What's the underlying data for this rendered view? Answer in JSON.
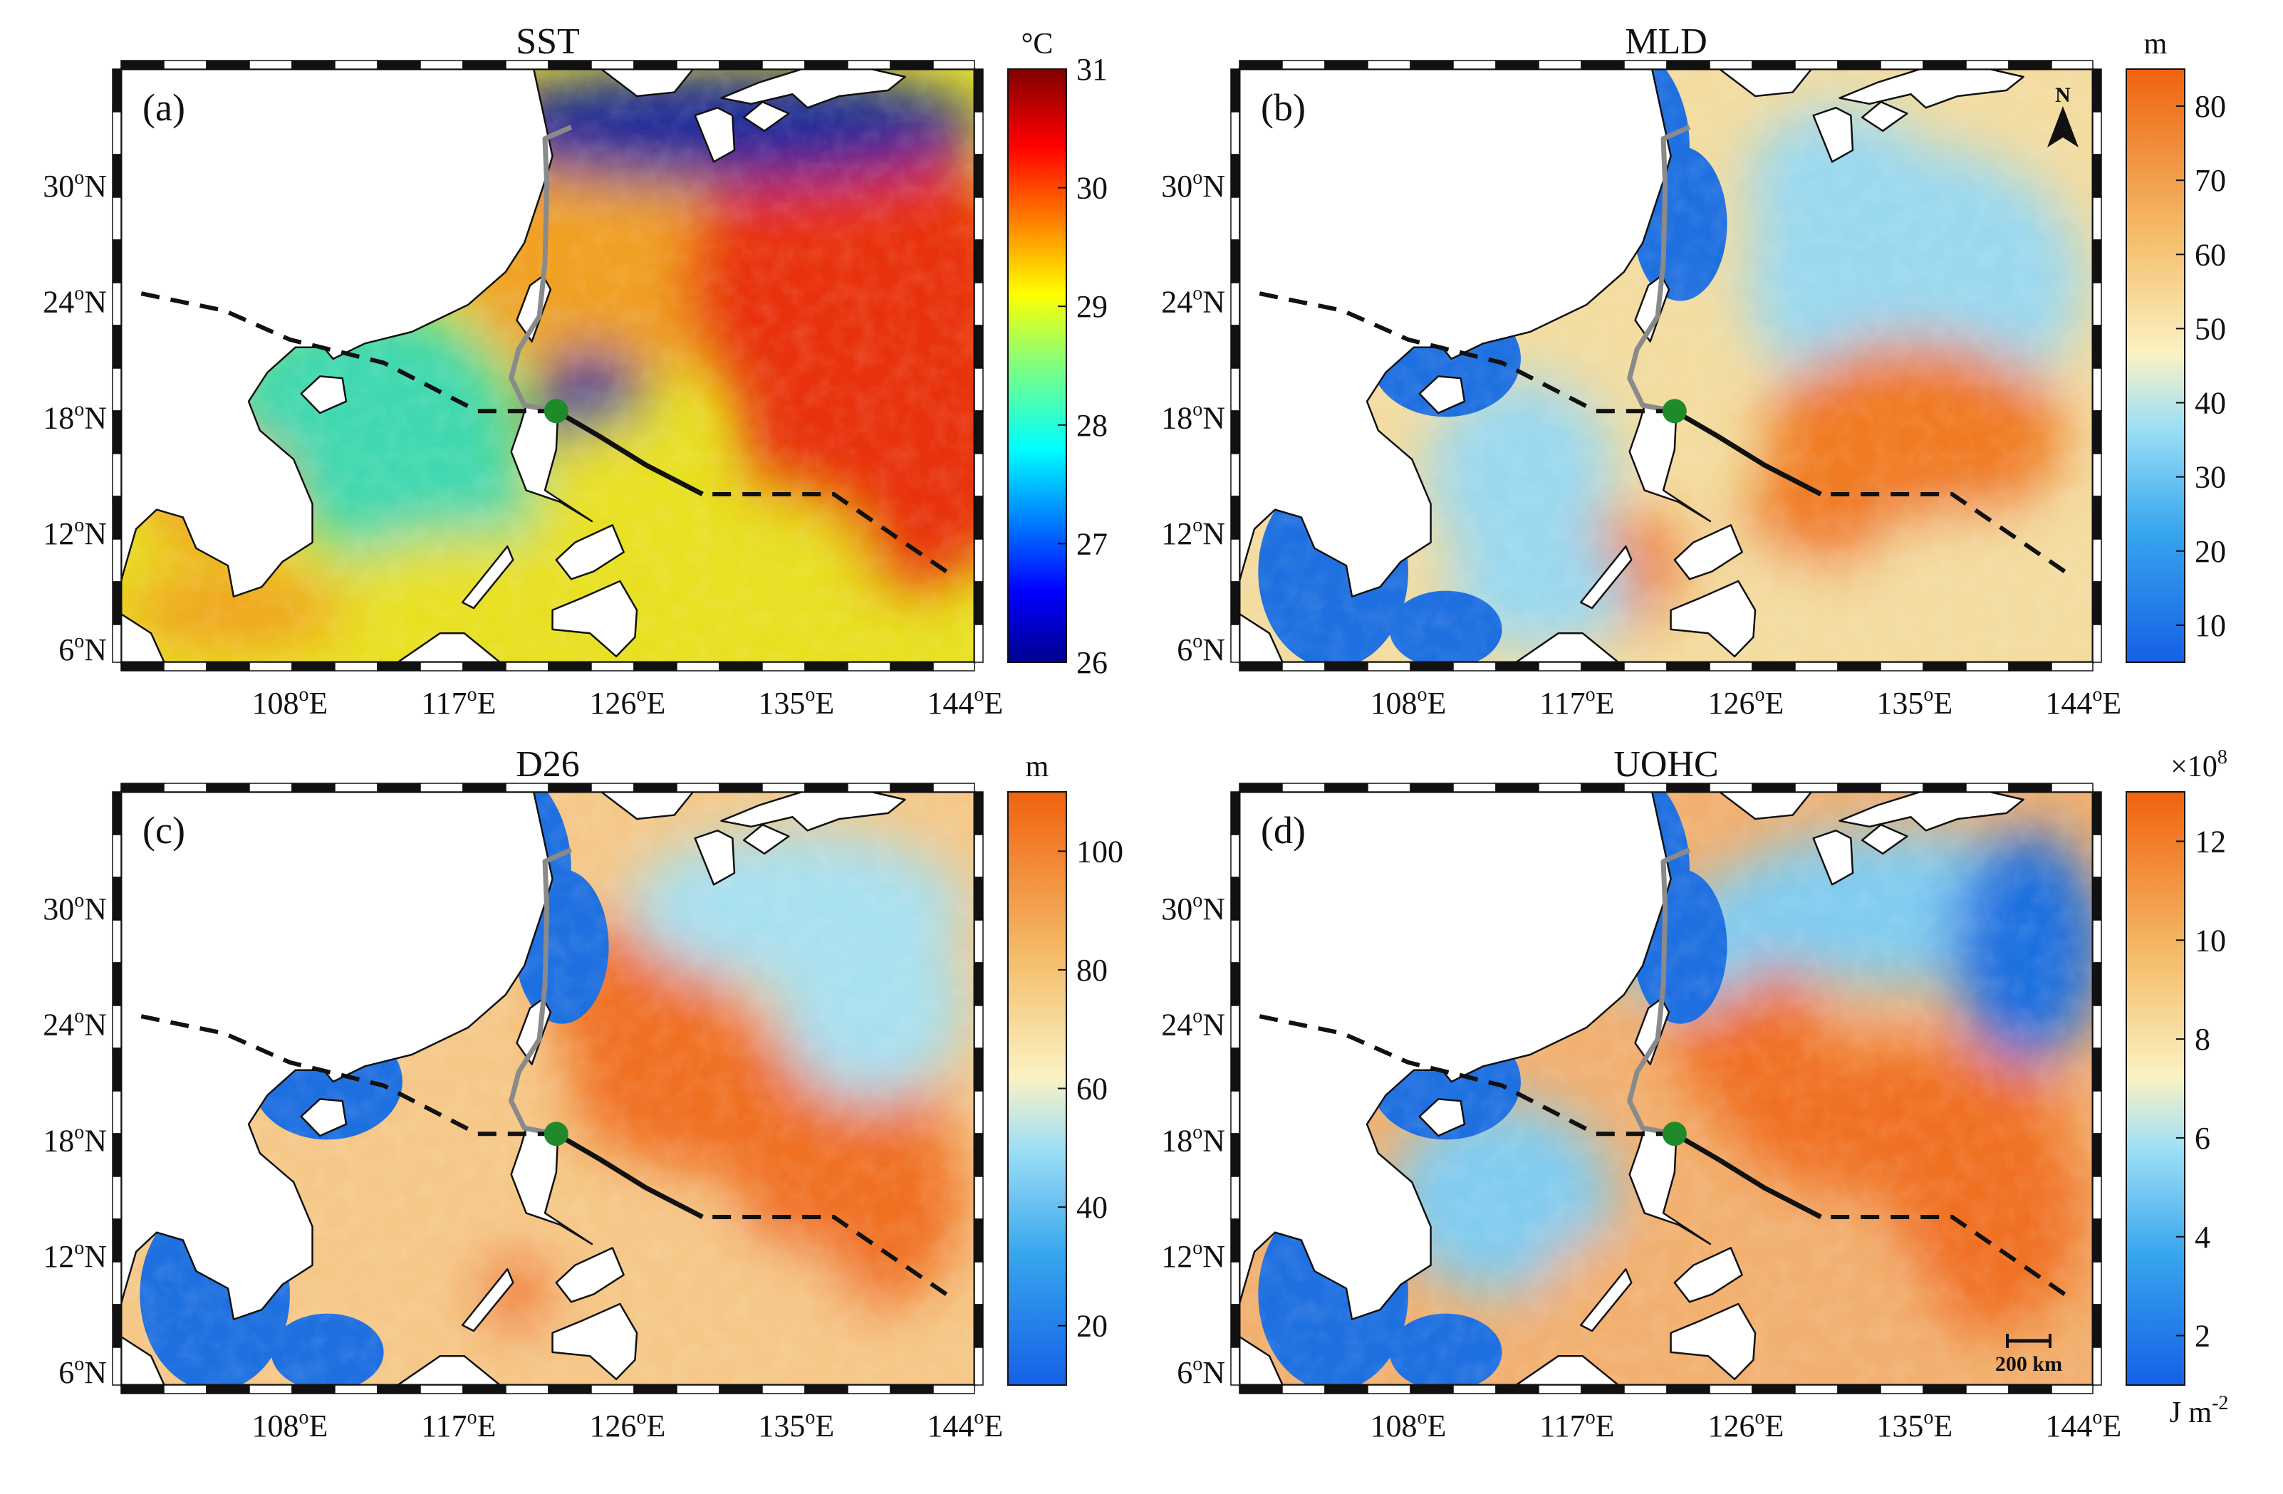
{
  "chart_data": [
    {
      "type": "heatmap",
      "panel_label": "(a)",
      "title": "SST",
      "colorbar": {
        "unit": "°C",
        "min": 26,
        "max": 31,
        "ticks": [
          "26",
          "27",
          "28",
          "29",
          "30",
          "31"
        ],
        "colormap": "jet"
      },
      "background_colors": [
        "#e8e020",
        "#f0a020",
        "#40d8b0",
        "#1a2a9a",
        "#e83010"
      ]
    },
    {
      "type": "heatmap",
      "panel_label": "(b)",
      "title": "MLD",
      "colorbar": {
        "unit": "m",
        "min": 5,
        "max": 85,
        "ticks": [
          "10",
          "20",
          "30",
          "40",
          "50",
          "60",
          "70",
          "80"
        ],
        "colormap": "blue-white-orange"
      },
      "north_arrow": "N",
      "background_colors": [
        "#f3dca0",
        "#9ad8f0",
        "#f07a20",
        "#1e6fe0"
      ]
    },
    {
      "type": "heatmap",
      "panel_label": "(c)",
      "title": "D26",
      "colorbar": {
        "unit": "m",
        "min": 10,
        "max": 110,
        "ticks": [
          "20",
          "40",
          "60",
          "80",
          "100"
        ],
        "colormap": "blue-white-orange"
      },
      "background_colors": [
        "#f5c888",
        "#f07020",
        "#a8e0f0",
        "#1e6fe0"
      ]
    },
    {
      "type": "heatmap",
      "panel_label": "(d)",
      "title": "UOHC",
      "colorbar": {
        "unit": "J m",
        "unit_exp": "-2",
        "multiplier": "×10",
        "multiplier_exp": "8",
        "min": 1,
        "max": 13,
        "ticks": [
          "2",
          "4",
          "6",
          "8",
          "10",
          "12"
        ],
        "colormap": "blue-white-orange"
      },
      "scale_bar": "200 km",
      "background_colors": [
        "#f2b070",
        "#f07020",
        "#80ccf0",
        "#1e6fe0"
      ]
    }
  ],
  "axes": {
    "lon_ticks": [
      {
        "value": 108,
        "label": "108",
        "suffix": "E"
      },
      {
        "value": 117,
        "label": "117",
        "suffix": "E"
      },
      {
        "value": 126,
        "label": "126",
        "suffix": "E"
      },
      {
        "value": 135,
        "label": "135",
        "suffix": "E"
      },
      {
        "value": 144,
        "label": "144",
        "suffix": "E"
      }
    ],
    "lat_ticks": [
      {
        "value": 30,
        "label": "30",
        "suffix": "N"
      },
      {
        "value": 24,
        "label": "24",
        "suffix": "N"
      },
      {
        "value": 18,
        "label": "18",
        "suffix": "N"
      },
      {
        "value": 12,
        "label": "12",
        "suffix": "N"
      },
      {
        "value": 6,
        "label": "6",
        "suffix": "N"
      }
    ],
    "degree_symbol": "o",
    "lon_range": [
      99,
      144.5
    ],
    "lat_range": [
      5.3,
      36
    ]
  },
  "track": {
    "past": [
      [
        143,
        10
      ],
      [
        140,
        12
      ],
      [
        137,
        14
      ],
      [
        134,
        14
      ],
      [
        130,
        14
      ],
      [
        127,
        15.5
      ],
      [
        124.5,
        17
      ]
    ],
    "observed": [
      [
        130,
        14
      ],
      [
        127,
        15.5
      ],
      [
        124.5,
        17
      ],
      [
        122.2,
        18.3
      ]
    ],
    "forecast_west": [
      [
        122.2,
        18.3
      ],
      [
        118,
        18.3
      ],
      [
        113,
        20.8
      ],
      [
        108,
        22
      ],
      [
        104.5,
        23.5
      ],
      [
        99.5,
        24.5
      ]
    ],
    "gray_path": [
      [
        122.2,
        18.3
      ],
      [
        120.5,
        18.6
      ],
      [
        119.8,
        20
      ],
      [
        120.2,
        21.5
      ],
      [
        121.3,
        23.2
      ],
      [
        121.6,
        26
      ],
      [
        121.7,
        30
      ],
      [
        121.6,
        32.4
      ],
      [
        123,
        33
      ]
    ],
    "landfall": [
      122.2,
      18.3
    ]
  }
}
